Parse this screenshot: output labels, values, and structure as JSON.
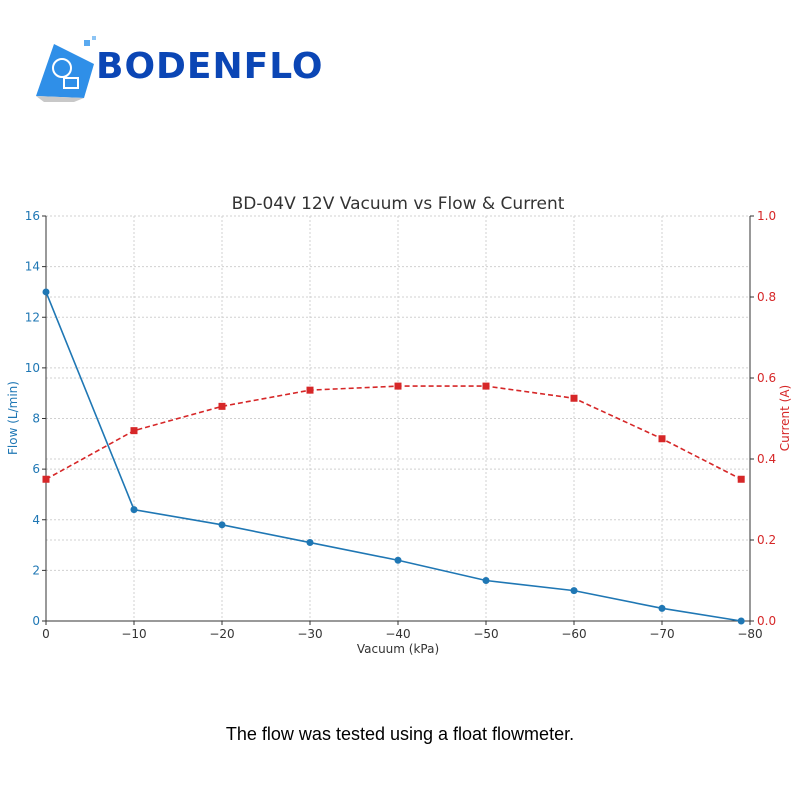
{
  "logo": {
    "text": "BODENFLO",
    "brand_color": "#0b46b5"
  },
  "caption": "The flow was tested using a float flowmeter.",
  "chart_data": {
    "type": "line",
    "title": "BD-04V 12V Vacuum vs Flow & Current",
    "xlabel": "Vacuum (kPa)",
    "ylabel": "Flow (L/min)",
    "y2label": "Current (A)",
    "xlim": [
      0,
      -80
    ],
    "ylim": [
      0,
      16
    ],
    "y2lim": [
      0,
      1.0
    ],
    "grid": true,
    "x_ticks": [
      "0",
      "−10",
      "−20",
      "−30",
      "−40",
      "−50",
      "−60",
      "−70",
      "−80"
    ],
    "y_ticks": [
      "0",
      "2",
      "4",
      "6",
      "8",
      "10",
      "12",
      "14",
      "16"
    ],
    "y2_ticks": [
      "0.0",
      "0.2",
      "0.4",
      "0.6",
      "0.8",
      "1.0"
    ],
    "x": [
      0,
      -10,
      -20,
      -30,
      -40,
      -50,
      -60,
      -70,
      -79
    ],
    "series": [
      {
        "axis": "left",
        "color": "#1f77b4",
        "style": "solid",
        "marker": "circle",
        "values": [
          13.0,
          4.4,
          3.8,
          3.1,
          2.4,
          1.6,
          1.2,
          0.5,
          0.0
        ]
      },
      {
        "axis": "right",
        "color": "#d62728",
        "style": "dashed",
        "marker": "square",
        "values": [
          0.35,
          0.47,
          0.53,
          0.57,
          0.58,
          0.58,
          0.55,
          0.45,
          0.35
        ]
      }
    ]
  }
}
